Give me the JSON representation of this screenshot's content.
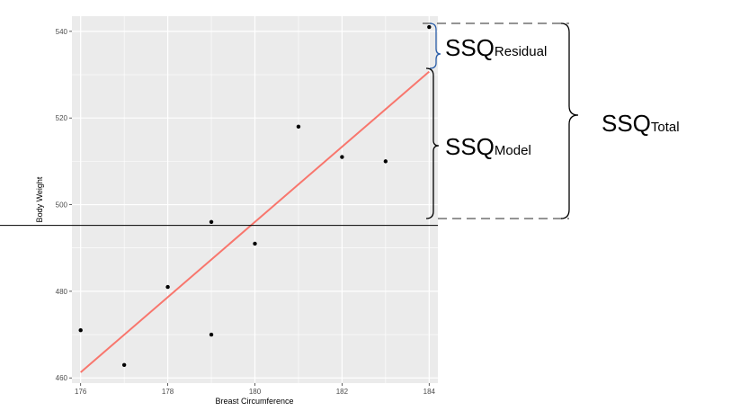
{
  "chart_data": {
    "type": "scatter",
    "xlabel": "Breast Circumference",
    "ylabel": "Body Weight",
    "xlim": [
      175.8,
      184.2
    ],
    "ylim": [
      458.8,
      543.5
    ],
    "x_ticks": [
      176,
      178,
      180,
      182,
      184
    ],
    "y_ticks": [
      460,
      480,
      500,
      520,
      540
    ],
    "grid": true,
    "points": [
      {
        "x": 176,
        "y": 471
      },
      {
        "x": 177,
        "y": 463
      },
      {
        "x": 178,
        "y": 481
      },
      {
        "x": 179,
        "y": 496
      },
      {
        "x": 179,
        "y": 470
      },
      {
        "x": 180,
        "y": 491
      },
      {
        "x": 181,
        "y": 518
      },
      {
        "x": 182,
        "y": 511
      },
      {
        "x": 183,
        "y": 510
      },
      {
        "x": 184,
        "y": 541
      }
    ],
    "regression_line": {
      "x": [
        176,
        184
      ],
      "y": [
        461.3,
        530.7
      ],
      "color": "#f8766d"
    },
    "mean_line": {
      "y": 495.2,
      "color": "#000000"
    },
    "colors": {
      "panel": "#ebebeb",
      "grid": "#ffffff",
      "point": "#000000",
      "residual_brace": "#2b5ea8",
      "brace": "#000000"
    }
  },
  "annotations": {
    "residual": {
      "main": "SSQ",
      "sub": "Residual"
    },
    "model": {
      "main": "SSQ",
      "sub": "Model"
    },
    "total": {
      "main": "SSQ",
      "sub": "Total"
    }
  }
}
